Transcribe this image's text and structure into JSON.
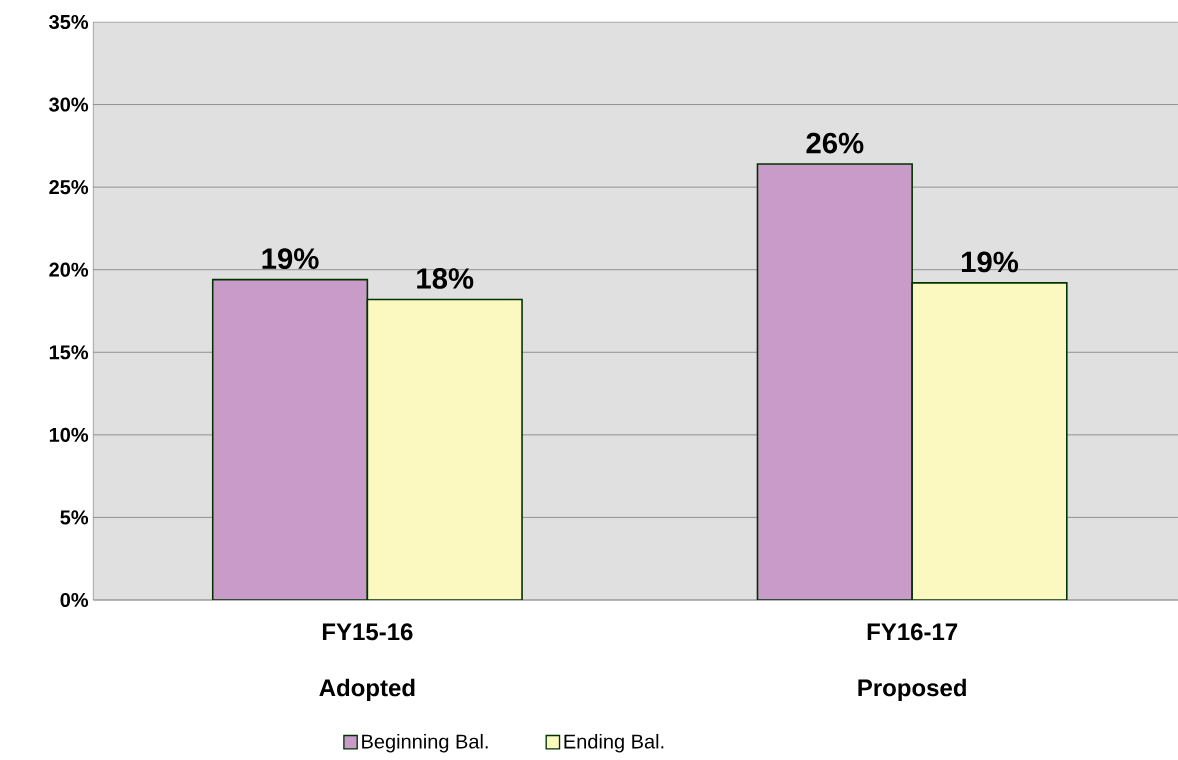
{
  "chart_data": {
    "type": "bar",
    "categories": [
      "FY15-16 Adopted",
      "FY16-17 Proposed"
    ],
    "series": [
      {
        "name": "Beginning Bal.",
        "color": "#c99bc8",
        "values": [
          19.4,
          26.4
        ],
        "value_labels": [
          "19%",
          "26%"
        ]
      },
      {
        "name": "Ending Bal.",
        "color": "#fbf8c0",
        "values": [
          18.2,
          19.2
        ],
        "value_labels": [
          "18%",
          "19%"
        ]
      }
    ],
    "ylim": [
      0,
      35
    ],
    "yticks": [
      {
        "value": 0,
        "label": "0%"
      },
      {
        "value": 5,
        "label": "5%"
      },
      {
        "value": 10,
        "label": "10%"
      },
      {
        "value": 15,
        "label": "15%"
      },
      {
        "value": 20,
        "label": "20%"
      },
      {
        "value": 25,
        "label": "25%"
      },
      {
        "value": 30,
        "label": "30%"
      },
      {
        "value": 35,
        "label": "35%"
      }
    ],
    "grid": "y",
    "legend": "bottom"
  }
}
